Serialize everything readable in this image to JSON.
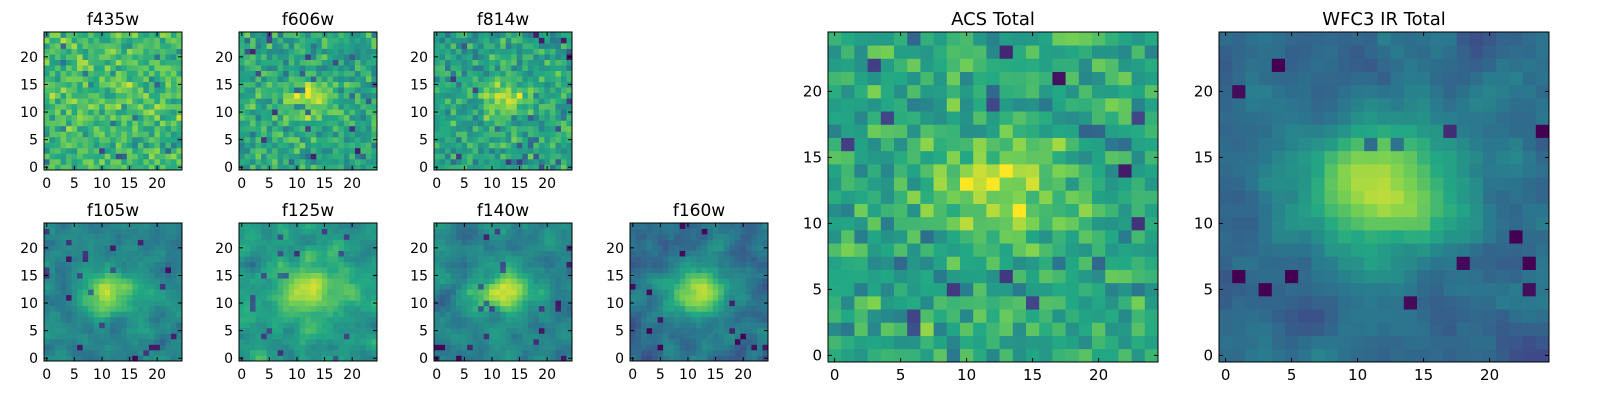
{
  "figure": {
    "colormap": "viridis",
    "colormap_stops": [
      "#440154",
      "#414487",
      "#2a788e",
      "#22a884",
      "#7ad151",
      "#fde725"
    ],
    "frame_color": "#000000",
    "background": "#ffffff"
  },
  "chart_data": [
    {
      "id": "f435w",
      "type": "heatmap",
      "title": "f435w",
      "grid": false,
      "nx": 25,
      "ny": 25,
      "seed": 11,
      "center": [
        12,
        11
      ],
      "sigma": 3.0,
      "peak": 0.05,
      "base": 0.68,
      "noise": 0.14,
      "smooth": 0,
      "xticks": [
        0,
        5,
        10,
        15,
        20
      ],
      "yticks": [
        0,
        5,
        10,
        15,
        20
      ],
      "xlim": [
        -0.5,
        24.5
      ],
      "ylim": [
        -0.5,
        24.5
      ]
    },
    {
      "id": "f606w",
      "type": "heatmap",
      "title": "f606w",
      "grid": false,
      "nx": 25,
      "ny": 25,
      "seed": 23,
      "center": [
        12,
        12.5
      ],
      "sigma": 2.3,
      "peak": 0.3,
      "base": 0.6,
      "noise": 0.14,
      "smooth": 0,
      "xticks": [
        0,
        5,
        10,
        15,
        20
      ],
      "yticks": [
        0,
        5,
        10,
        15,
        20
      ],
      "xlim": [
        -0.5,
        24.5
      ],
      "ylim": [
        -0.5,
        24.5
      ]
    },
    {
      "id": "f814w",
      "type": "heatmap",
      "title": "f814w",
      "grid": false,
      "nx": 25,
      "ny": 25,
      "seed": 37,
      "center": [
        12.5,
        12.5
      ],
      "sigma": 2.2,
      "peak": 0.32,
      "base": 0.58,
      "noise": 0.14,
      "smooth": 0,
      "xticks": [
        0,
        5,
        10,
        15,
        20
      ],
      "yticks": [
        0,
        5,
        10,
        15,
        20
      ],
      "xlim": [
        -0.5,
        24.5
      ],
      "ylim": [
        -0.5,
        24.5
      ]
    },
    {
      "id": "f105w",
      "type": "heatmap",
      "title": "f105w",
      "grid": false,
      "nx": 25,
      "ny": 25,
      "seed": 41,
      "center": [
        11.5,
        12
      ],
      "sigma": 2.8,
      "peak": 0.42,
      "base": 0.45,
      "noise": 0.13,
      "smooth": 1,
      "xticks": [
        0,
        5,
        10,
        15,
        20
      ],
      "yticks": [
        0,
        5,
        10,
        15,
        20
      ],
      "xlim": [
        -0.5,
        24.5
      ],
      "ylim": [
        -0.5,
        24.5
      ]
    },
    {
      "id": "f125w",
      "type": "heatmap",
      "title": "f125w",
      "grid": false,
      "nx": 25,
      "ny": 25,
      "seed": 53,
      "center": [
        12,
        12
      ],
      "sigma": 3.0,
      "peak": 0.35,
      "base": 0.55,
      "noise": 0.13,
      "smooth": 1,
      "xticks": [
        0,
        5,
        10,
        15,
        20
      ],
      "yticks": [
        0,
        5,
        10,
        15,
        20
      ],
      "xlim": [
        -0.5,
        24.5
      ],
      "ylim": [
        -0.5,
        24.5
      ]
    },
    {
      "id": "f140w",
      "type": "heatmap",
      "title": "f140w",
      "grid": false,
      "nx": 25,
      "ny": 25,
      "seed": 67,
      "center": [
        12,
        12
      ],
      "sigma": 2.8,
      "peak": 0.45,
      "base": 0.45,
      "noise": 0.14,
      "smooth": 1,
      "xticks": [
        0,
        5,
        10,
        15,
        20
      ],
      "yticks": [
        0,
        5,
        10,
        15,
        20
      ],
      "xlim": [
        -0.5,
        24.5
      ],
      "ylim": [
        -0.5,
        24.5
      ]
    },
    {
      "id": "f160w",
      "type": "heatmap",
      "title": "f160w",
      "grid": false,
      "nx": 25,
      "ny": 25,
      "seed": 79,
      "center": [
        12,
        12
      ],
      "sigma": 3.0,
      "peak": 0.52,
      "base": 0.38,
      "noise": 0.13,
      "smooth": 1,
      "xticks": [
        0,
        5,
        10,
        15,
        20
      ],
      "yticks": [
        0,
        5,
        10,
        15,
        20
      ],
      "xlim": [
        -0.5,
        24.5
      ],
      "ylim": [
        -0.5,
        24.5
      ]
    },
    {
      "id": "acs-total",
      "type": "heatmap",
      "title": "ACS Total",
      "grid": false,
      "nx": 25,
      "ny": 25,
      "seed": 97,
      "center": [
        12.5,
        12.5
      ],
      "sigma": 2.6,
      "peak": 0.3,
      "base": 0.6,
      "noise": 0.14,
      "smooth": 0,
      "xticks": [
        0,
        5,
        10,
        15,
        20
      ],
      "yticks": [
        0,
        5,
        10,
        15,
        20
      ],
      "xlim": [
        -0.5,
        24.5
      ],
      "ylim": [
        -0.5,
        24.5
      ]
    },
    {
      "id": "wfc3-ir-total",
      "type": "heatmap",
      "title": "WFC3 IR Total",
      "grid": false,
      "nx": 25,
      "ny": 25,
      "seed": 113,
      "center": [
        12,
        12.5
      ],
      "sigma": 3.3,
      "peak": 0.55,
      "base": 0.35,
      "noise": 0.1,
      "smooth": 1,
      "xticks": [
        0,
        5,
        10,
        15,
        20
      ],
      "yticks": [
        0,
        5,
        10,
        15,
        20
      ],
      "xlim": [
        -0.5,
        24.5
      ],
      "ylim": [
        -0.5,
        24.5
      ]
    }
  ]
}
